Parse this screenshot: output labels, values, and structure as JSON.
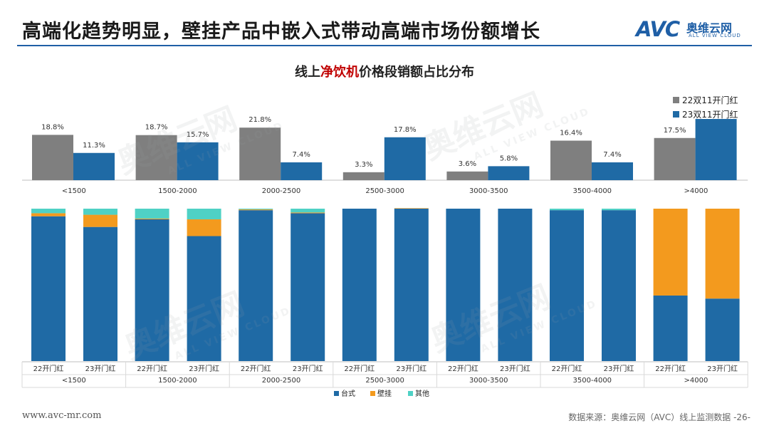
{
  "header": {
    "title": "高端化趋势明显，壁挂产品中嵌入式带动高端市场份额增长",
    "logo_mark": "AVC",
    "logo_cn": "奥维云网",
    "logo_en": "ALL VIEW CLOUD"
  },
  "chart_title": {
    "prefix": "线上",
    "highlight": "净饮机",
    "suffix": "价格段销额占比分布"
  },
  "watermark": {
    "cn": "奥维云网",
    "en": "ALL VIEW CLOUD"
  },
  "footer": {
    "url": "www.avc-mr.com",
    "source": "数据来源：奥维云网（AVC）线上监测数据  -26-"
  },
  "colors": {
    "series_22": "#7f7f7f",
    "series_23": "#1f6aa5",
    "taishi": "#1f6aa5",
    "guagua": "#f39a1e",
    "qita": "#4fd1c5",
    "accent": "#c00000"
  },
  "chart_data": [
    {
      "type": "bar",
      "categories": [
        "<1500",
        "1500-2000",
        "2000-2500",
        "2500-3000",
        "3000-3500",
        "3500-4000",
        ">4000"
      ],
      "series": [
        {
          "name": "22双11开门红",
          "values": [
            18.8,
            18.7,
            21.8,
            3.3,
            3.6,
            16.4,
            17.5
          ],
          "labels": [
            "18.8%",
            "18.7%",
            "21.8%",
            "3.3%",
            "3.6%",
            "16.4%",
            "17.5%"
          ]
        },
        {
          "name": "23双11开门红",
          "values": [
            11.3,
            15.7,
            7.4,
            17.8,
            5.8,
            7.4,
            25.4
          ],
          "labels": [
            "11.3%",
            "15.7%",
            "7.4%",
            "17.8%",
            "5.8%",
            "7.4%",
            ""
          ]
        }
      ],
      "ylim": [
        0,
        26
      ],
      "legend": "top-right",
      "grid": false
    },
    {
      "type": "bar",
      "stacked": true,
      "percent": true,
      "groups": [
        "<1500",
        "1500-2000",
        "2000-2500",
        "2500-3000",
        "3000-3500",
        "3500-4000",
        ">4000"
      ],
      "sub_categories": [
        "22开门红",
        "23开门红"
      ],
      "series": [
        {
          "name": "台式",
          "values": [
            95,
            88,
            93,
            82,
            99,
            97,
            100,
            100,
            100,
            100,
            99,
            99,
            43,
            41
          ]
        },
        {
          "name": "壁挂",
          "values": [
            2,
            8,
            0.5,
            11,
            0.5,
            0.5,
            0,
            0.3,
            0,
            0,
            0,
            0,
            57,
            59
          ]
        },
        {
          "name": "其他",
          "values": [
            3,
            4,
            6.5,
            7,
            0.5,
            2.5,
            0,
            0,
            0,
            0,
            1,
            1,
            0,
            0
          ]
        }
      ],
      "ylim": [
        0,
        100
      ],
      "legend": "bottom"
    }
  ]
}
